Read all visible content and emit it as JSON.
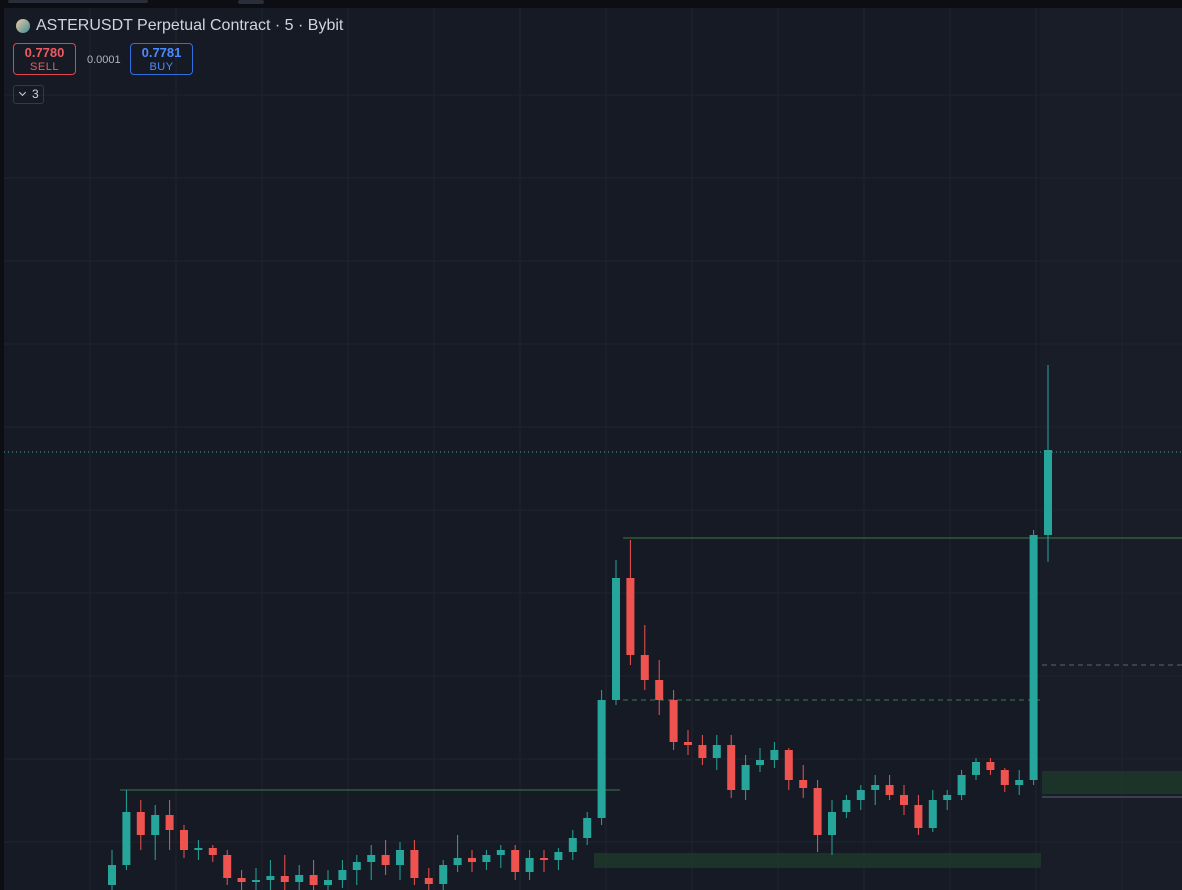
{
  "header": {
    "title": "ASTERUSDT Perpetual Contract · 5 · Bybit",
    "sell_price": "0.7780",
    "sell_label": "SELL",
    "spread": "0.0001",
    "buy_price": "0.7781",
    "buy_label": "BUY",
    "indicator_count": "3"
  },
  "chart_data": {
    "type": "candlestick",
    "ylim": [
      0.69,
      0.866
    ],
    "up_color": "#26a69a",
    "down_color": "#ef5350",
    "open": [
      0.691,
      0.695,
      0.7056,
      0.701,
      0.705,
      0.702,
      0.698,
      0.6984,
      0.697,
      0.6924,
      0.6916,
      0.692,
      0.6928,
      0.6916,
      0.693,
      0.691,
      0.692,
      0.694,
      0.6956,
      0.697,
      0.695,
      0.698,
      0.6924,
      0.6912,
      0.695,
      0.6964,
      0.6956,
      0.697,
      0.698,
      0.6936,
      0.6964,
      0.696,
      0.6976,
      0.7004,
      0.7044,
      0.728,
      0.7524,
      0.737,
      0.732,
      0.728,
      0.7196,
      0.719,
      0.7164,
      0.719,
      0.71,
      0.715,
      0.716,
      0.718,
      0.712,
      0.7104,
      0.701,
      0.7056,
      0.708,
      0.71,
      0.711,
      0.709,
      0.707,
      0.7024,
      0.708,
      0.709,
      0.713,
      0.7156,
      0.714,
      0.711,
      0.712,
      0.761
    ],
    "high": [
      0.698,
      0.71,
      0.708,
      0.707,
      0.708,
      0.703,
      0.7,
      0.699,
      0.698,
      0.694,
      0.6944,
      0.696,
      0.697,
      0.695,
      0.696,
      0.694,
      0.696,
      0.697,
      0.699,
      0.7,
      0.6996,
      0.7,
      0.6944,
      0.696,
      0.701,
      0.698,
      0.698,
      0.699,
      0.699,
      0.698,
      0.698,
      0.6984,
      0.702,
      0.7056,
      0.73,
      0.756,
      0.76,
      0.743,
      0.736,
      0.73,
      0.722,
      0.721,
      0.721,
      0.721,
      0.717,
      0.7184,
      0.7196,
      0.7184,
      0.715,
      0.712,
      0.708,
      0.709,
      0.711,
      0.713,
      0.713,
      0.711,
      0.709,
      0.71,
      0.71,
      0.714,
      0.7164,
      0.7164,
      0.7144,
      0.714,
      0.762,
      0.795
    ],
    "low": [
      0.69,
      0.694,
      0.698,
      0.696,
      0.698,
      0.6964,
      0.696,
      0.6956,
      0.691,
      0.69,
      0.69,
      0.69,
      0.69,
      0.69,
      0.69,
      0.69,
      0.6904,
      0.691,
      0.692,
      0.693,
      0.692,
      0.691,
      0.69,
      0.69,
      0.6936,
      0.6936,
      0.694,
      0.6944,
      0.692,
      0.692,
      0.6936,
      0.694,
      0.696,
      0.699,
      0.703,
      0.727,
      0.735,
      0.73,
      0.725,
      0.718,
      0.717,
      0.715,
      0.714,
      0.7084,
      0.708,
      0.7136,
      0.7144,
      0.71,
      0.7084,
      0.6976,
      0.697,
      0.7044,
      0.706,
      0.707,
      0.708,
      0.705,
      0.701,
      0.7016,
      0.706,
      0.708,
      0.712,
      0.713,
      0.7096,
      0.709,
      0.711,
      0.7556
    ],
    "close": [
      0.695,
      0.7056,
      0.701,
      0.705,
      0.702,
      0.698,
      0.6984,
      0.697,
      0.6924,
      0.6916,
      0.692,
      0.6928,
      0.6916,
      0.693,
      0.691,
      0.692,
      0.694,
      0.6956,
      0.697,
      0.695,
      0.698,
      0.6924,
      0.6912,
      0.695,
      0.6964,
      0.6956,
      0.697,
      0.698,
      0.6936,
      0.6964,
      0.696,
      0.6976,
      0.7004,
      0.7044,
      0.728,
      0.7524,
      0.737,
      0.732,
      0.728,
      0.7196,
      0.719,
      0.7164,
      0.719,
      0.71,
      0.715,
      0.716,
      0.718,
      0.712,
      0.7104,
      0.701,
      0.7056,
      0.708,
      0.71,
      0.711,
      0.709,
      0.707,
      0.7024,
      0.708,
      0.709,
      0.713,
      0.7156,
      0.714,
      0.711,
      0.712,
      0.761,
      0.778
    ]
  }
}
